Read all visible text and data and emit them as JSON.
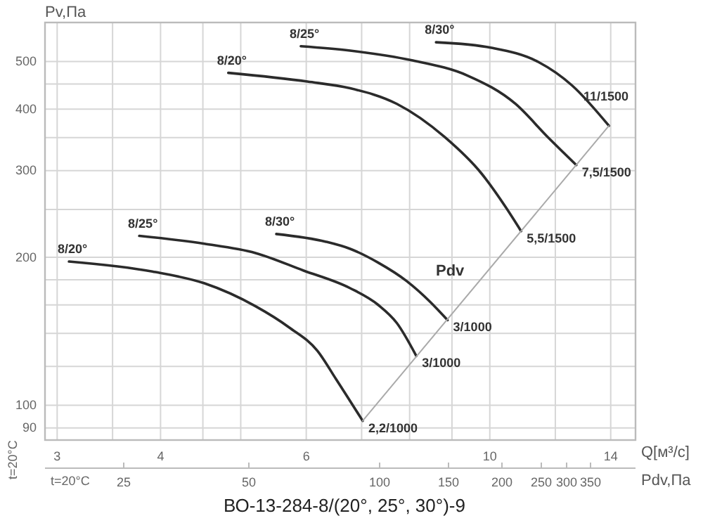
{
  "chart_data": {
    "type": "line",
    "title": "ВО-13-284-8/(20°, 25°, 30°)-9",
    "xlabel": "Q[м³/с]",
    "ylabel": "Pv,Па",
    "x2label": "Pdv,Па",
    "log": "xy",
    "grid": true,
    "marker": "none",
    "line_style": "solid",
    "xlim": [
      2.9,
      15
    ],
    "ylim": [
      85,
      600
    ],
    "xticks": [
      3,
      {
        "value": 3.5,
        "label": null
      },
      4,
      {
        "value": 4.5,
        "label": null
      },
      {
        "value": 5,
        "label": null
      },
      6,
      {
        "value": 7,
        "label": null
      },
      {
        "value": 8,
        "label": null
      },
      {
        "value": 9,
        "label": null
      },
      10,
      {
        "value": 12,
        "label": null
      },
      14
    ],
    "yticks": [
      90,
      100,
      {
        "value": 120,
        "label": null
      },
      {
        "value": 140,
        "label": null
      },
      {
        "value": 160,
        "label": null
      },
      {
        "value": 180,
        "label": null
      },
      200,
      {
        "value": 250,
        "label": null
      },
      300,
      {
        "value": 350,
        "label": null
      },
      400,
      {
        "value": 450,
        "label": null
      },
      500
    ],
    "series": [
      {
        "name": "8/20°",
        "color": "#2b2b2b",
        "x": [
          3.1,
          3.91,
          4.52,
          5.21,
          5.72,
          6.19,
          6.52,
          7.02
        ],
        "values": [
          196,
          187,
          177,
          159,
          144,
          129,
          113,
          93
        ]
      },
      {
        "name": "8/25°",
        "color": "#2b2b2b",
        "x": [
          3.77,
          4.52,
          5.21,
          5.95,
          6.78,
          7.33,
          7.72,
          8.15
        ],
        "values": [
          221,
          213,
          204,
          188,
          173,
          160,
          147,
          126
        ]
      },
      {
        "name": "8/30°",
        "color": "#2b2b2b",
        "x": [
          5.52,
          6.34,
          6.78,
          7.33,
          7.93,
          8.48,
          8.89
        ],
        "values": [
          223,
          215,
          208,
          195,
          179,
          162,
          149
        ]
      },
      {
        "name": "8/20°",
        "color": "#2b2b2b",
        "x": [
          4.83,
          6.02,
          6.78,
          7.72,
          8.82,
          9.77,
          10.45,
          10.91
        ],
        "values": [
          474,
          455,
          441,
          410,
          351,
          296,
          253,
          226
        ]
      },
      {
        "name": "8/25°",
        "color": "#2b2b2b",
        "x": [
          5.91,
          6.78,
          8.03,
          9.4,
          10.74,
          11.75,
          12.72
        ],
        "values": [
          537,
          526,
          503,
          468,
          410,
          351,
          308
        ]
      },
      {
        "name": "8/30°",
        "color": "#2b2b2b",
        "x": [
          8.61,
          10.05,
          11.44,
          12.57,
          13.93
        ],
        "values": [
          547,
          533,
          499,
          447,
          370
        ]
      },
      {
        "color": "#aaaaaa",
        "x": [
          7.02,
          13.93
        ],
        "values": [
          93,
          370
        ]
      }
    ],
    "annotations": [
      {
        "text": "2,2/1000",
        "x": 7.02,
        "y": 93
      },
      {
        "text": "3/1000",
        "x": 8.15,
        "y": 126
      },
      {
        "text": "3/1000",
        "x": 8.89,
        "y": 149
      },
      {
        "text": "5,5/1500",
        "x": 10.91,
        "y": 226
      },
      {
        "text": "7,5/1500",
        "x": 12.72,
        "y": 308
      },
      {
        "text": "11/1500",
        "x": 13.93,
        "y": 370
      },
      "Pdv",
      "t=20°C",
      "t=20°C",
      "25",
      "50",
      "100",
      "150",
      "200",
      "250",
      "300",
      "350"
    ]
  }
}
